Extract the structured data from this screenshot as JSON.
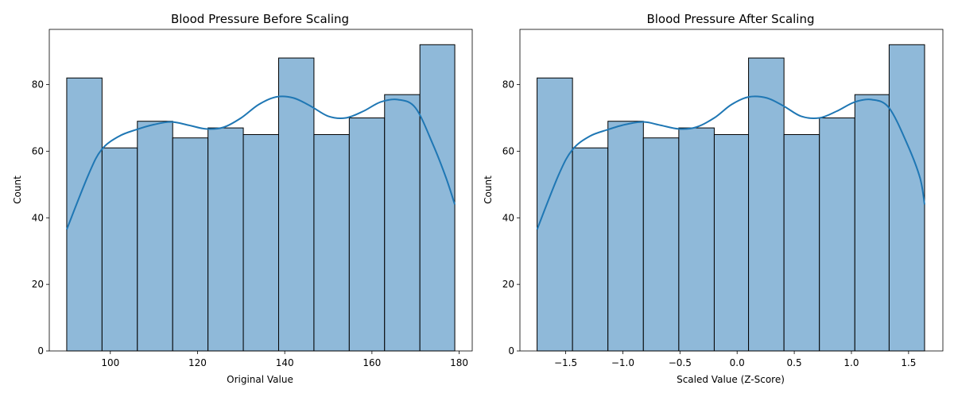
{
  "colors": {
    "bar_fill": "#8fb9d9",
    "bar_edge": "#000000",
    "kde_line": "#1f77b4"
  },
  "chart_data": [
    {
      "type": "bar",
      "title": "Blood Pressure Before Scaling",
      "xlabel": "Original Value",
      "ylabel": "Count",
      "xlim": [
        86,
        183
      ],
      "ylim": [
        0,
        96.6
      ],
      "xticks": [
        100,
        120,
        140,
        160,
        180
      ],
      "yticks": [
        0,
        20,
        40,
        60,
        80
      ],
      "bin_edges": [
        90,
        98.1,
        106.2,
        114.3,
        122.4,
        130.5,
        138.6,
        146.7,
        154.8,
        162.9,
        171,
        179
      ],
      "counts": [
        82,
        61,
        69,
        64,
        67,
        65,
        88,
        65,
        70,
        77,
        92
      ],
      "kde": {
        "x": [
          90,
          95,
          98,
          102,
          106,
          110,
          114,
          118,
          122,
          126,
          130,
          134,
          138,
          142,
          146,
          150,
          154,
          158,
          162,
          166,
          170,
          174,
          177,
          179
        ],
        "y": [
          36.5,
          53,
          60.5,
          64.5,
          66.5,
          68,
          68.8,
          67.8,
          66.7,
          67.2,
          70,
          74,
          76.3,
          76,
          73.5,
          70.5,
          70,
          72,
          74.8,
          75.5,
          73,
          62,
          52,
          44
        ]
      }
    },
    {
      "type": "bar",
      "title": "Blood Pressure After Scaling",
      "xlabel": "Scaled Value (Z-Score)",
      "ylabel": "Count",
      "xlim": [
        -1.9,
        1.8
      ],
      "ylim": [
        0,
        96.6
      ],
      "xticks": [
        -1.5,
        -1.0,
        -0.5,
        0.0,
        0.5,
        1.0,
        1.5
      ],
      "xticklabels": [
        "−1.5",
        "−1.0",
        "−0.5",
        "0.0",
        "0.5",
        "1.0",
        "1.5"
      ],
      "yticks": [
        0,
        20,
        40,
        60,
        80
      ],
      "bin_edges": [
        -1.75,
        -1.44,
        -1.13,
        -0.82,
        -0.51,
        -0.2,
        0.1,
        0.41,
        0.72,
        1.03,
        1.33,
        1.64
      ],
      "counts": [
        82,
        61,
        69,
        64,
        67,
        65,
        88,
        65,
        70,
        77,
        92
      ],
      "kde": {
        "x": [
          -1.75,
          -1.56,
          -1.44,
          -1.29,
          -1.13,
          -0.98,
          -0.82,
          -0.67,
          -0.51,
          -0.36,
          -0.2,
          -0.05,
          0.1,
          0.26,
          0.41,
          0.56,
          0.72,
          0.87,
          1.03,
          1.18,
          1.33,
          1.49,
          1.6,
          1.64
        ],
        "y": [
          36.5,
          53,
          60.5,
          64.5,
          66.5,
          68,
          68.8,
          67.8,
          66.7,
          67.2,
          70,
          74,
          76.3,
          76,
          73.5,
          70.5,
          70,
          72,
          74.8,
          75.5,
          73,
          62,
          52,
          44
        ]
      }
    }
  ]
}
